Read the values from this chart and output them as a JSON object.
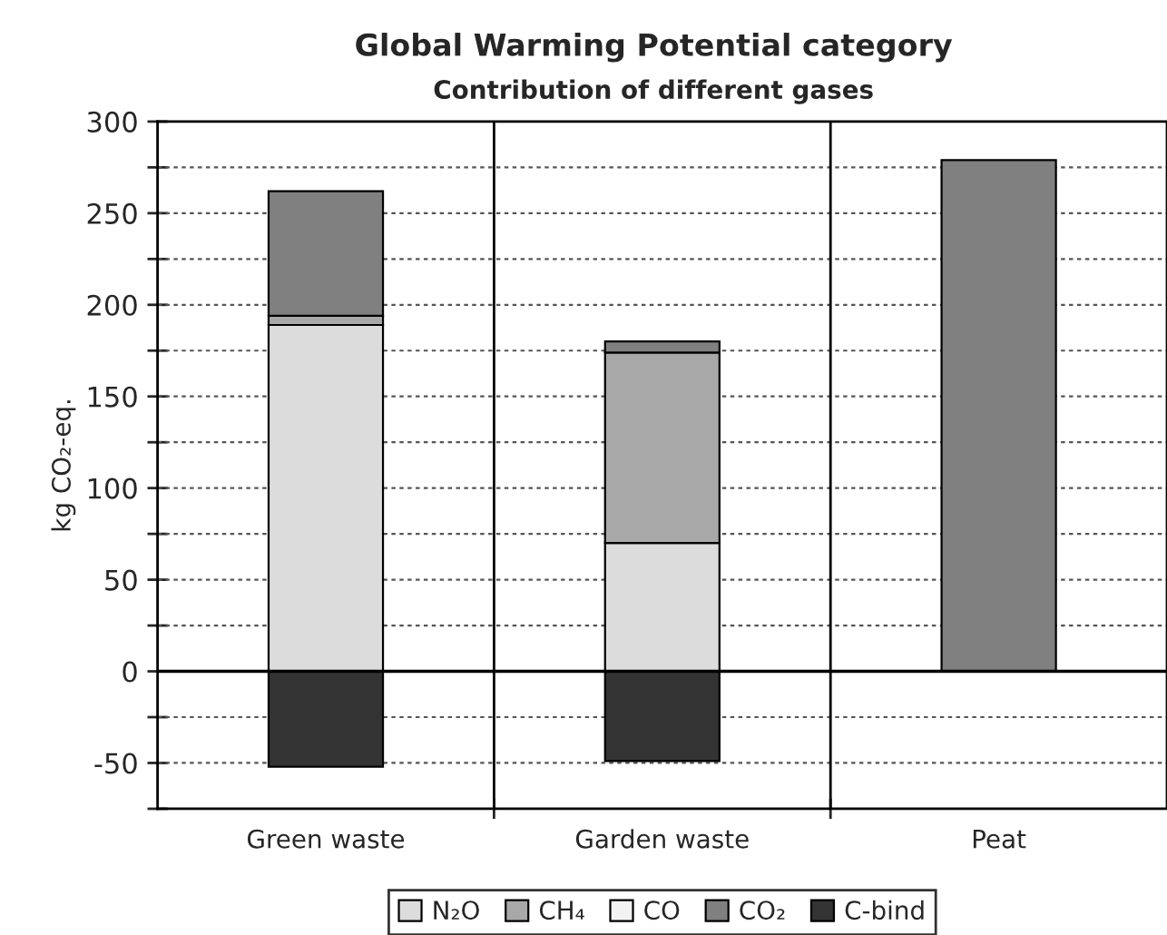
{
  "chart_data": {
    "type": "bar",
    "title": "Global Warming Potential category",
    "subtitle": "Contribution of different gases",
    "ylabel": "kg CO₂-eq.",
    "categories": [
      "Green waste",
      "Garden waste",
      "Peat"
    ],
    "stacked": true,
    "series": [
      {
        "name": "N₂O",
        "color": "#dcdcdc",
        "values": [
          189,
          70,
          null
        ]
      },
      {
        "name": "CH₄",
        "color": "#a8a8a8",
        "values": [
          5,
          104,
          null
        ]
      },
      {
        "name": "CO",
        "color": "#f2f2f2",
        "values": [
          null,
          null,
          null
        ]
      },
      {
        "name": "CO₂",
        "color": "#808080",
        "values": [
          68,
          6,
          279
        ]
      },
      {
        "name": "C-bind",
        "color": "#333333",
        "values": [
          -52,
          -49,
          null
        ]
      }
    ],
    "ylim": [
      -75,
      300
    ],
    "yticks": [
      {
        "value": -75,
        "label": null
      },
      -50,
      {
        "value": -25,
        "label": null
      },
      0,
      {
        "value": 25,
        "label": null
      },
      50,
      {
        "value": 75,
        "label": null
      },
      100,
      {
        "value": 125,
        "label": null
      },
      150,
      {
        "value": 175,
        "label": null
      },
      200,
      {
        "value": 225,
        "label": null
      },
      250,
      {
        "value": 275,
        "label": null
      },
      300
    ],
    "ref_lines": [
      {
        "axis": "y",
        "value": 0,
        "color": "#000000",
        "line_style": "solid"
      }
    ],
    "grid": true,
    "legend": "bottom"
  }
}
